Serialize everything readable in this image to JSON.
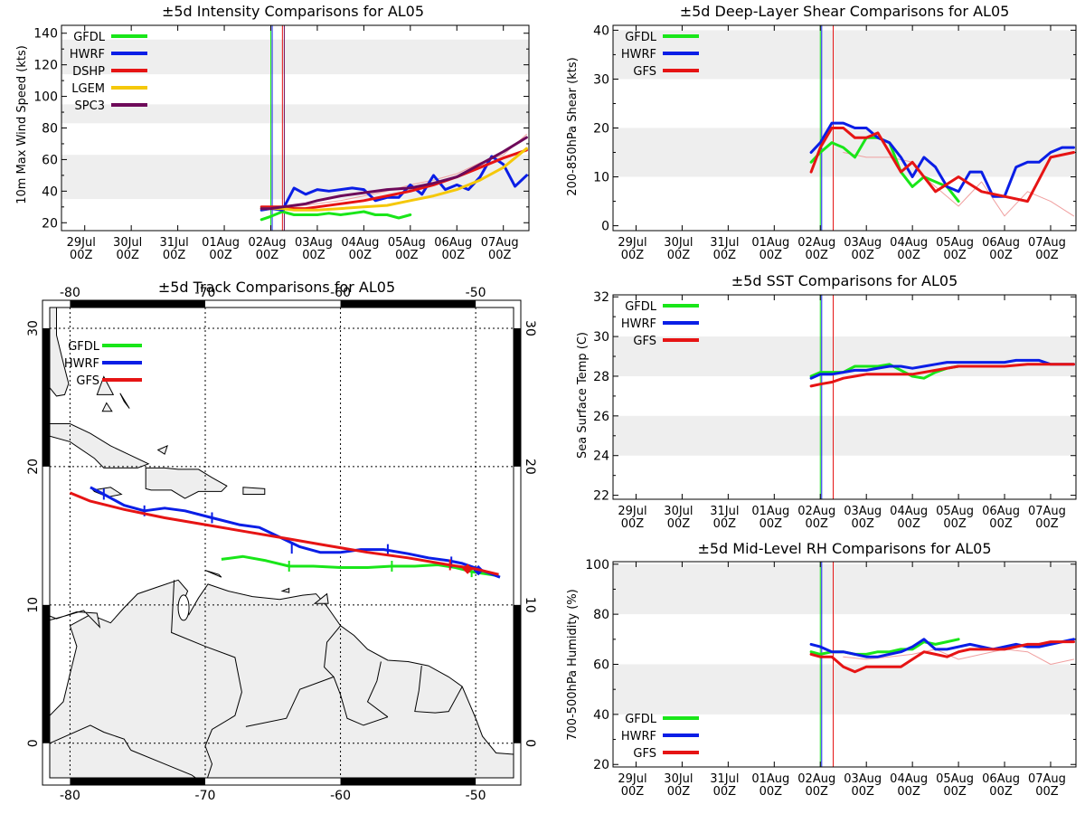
{
  "colors": {
    "GFDL": "#19e619",
    "HWRF": "#0a1ee6",
    "DSHP": "#e61414",
    "LGEM": "#f5c80a",
    "SPC3": "#6e0a5a",
    "GFS": "#e61414",
    "band": "#eeeeee",
    "land": "#eeeeee"
  },
  "time_ticks": [
    "29Jul|00Z",
    "30Jul|00Z",
    "31Jul|00Z",
    "01Aug|00Z",
    "02Aug|00Z",
    "03Aug|00Z",
    "04Aug|00Z",
    "05Aug|00Z",
    "06Aug|00Z",
    "07Aug|00Z"
  ],
  "chart_data": [
    {
      "id": "intensity",
      "type": "line",
      "title": "±5d Intensity Comparisons for AL05",
      "ylabel": "10m Max Wind Speed (kts)",
      "xlim": [
        -0.5,
        9.55
      ],
      "ylim": [
        15,
        145
      ],
      "yticks": [
        20,
        40,
        60,
        80,
        100,
        120,
        140
      ],
      "bands": [
        [
          35,
          63
        ],
        [
          83,
          95
        ],
        [
          114,
          136
        ]
      ],
      "vlines": [
        {
          "x": 4.0,
          "color": "#19e619"
        },
        {
          "x": 4.03,
          "color": "#0a1ee6"
        },
        {
          "x": 4.25,
          "color": "#e61414"
        },
        {
          "x": 4.29,
          "color": "#6e0a5a"
        }
      ],
      "legend": [
        "GFDL",
        "HWRF",
        "DSHP",
        "LGEM",
        "SPC3"
      ],
      "series": [
        {
          "name": "GFDL",
          "x": [
            3.8,
            4.0,
            4.25,
            4.5,
            4.75,
            5.0,
            5.25,
            5.5,
            5.75,
            6.0,
            6.25,
            6.5,
            6.75,
            7.0
          ],
          "y": [
            22,
            24,
            27,
            25,
            25,
            25,
            26,
            25,
            26,
            27,
            25,
            25,
            23,
            25
          ]
        },
        {
          "name": "HWRF",
          "x": [
            3.8,
            4.0,
            4.25,
            4.5,
            4.75,
            5.0,
            5.25,
            5.5,
            5.75,
            6.0,
            6.25,
            6.5,
            6.75,
            7.0,
            7.25,
            7.5,
            7.75,
            8.0,
            8.25,
            8.5,
            8.75,
            9.0,
            9.25,
            9.5
          ],
          "y": [
            28,
            29,
            28,
            42,
            38,
            41,
            40,
            41,
            42,
            41,
            34,
            36,
            36,
            44,
            38,
            50,
            41,
            44,
            41,
            49,
            62,
            57,
            43,
            50
          ]
        },
        {
          "name": "DSHP",
          "x": [
            3.8,
            4.0,
            4.25,
            4.5,
            4.75,
            5.0,
            5.5,
            6.0,
            6.5,
            7.0,
            7.5,
            8.0,
            8.5,
            9.0,
            9.5
          ],
          "y": [
            30,
            30,
            30,
            29,
            29,
            30,
            32,
            34,
            37,
            40,
            44,
            49,
            55,
            61,
            66
          ]
        },
        {
          "name": "LGEM",
          "x": [
            3.8,
            4.0,
            4.25,
            4.5,
            4.75,
            5.0,
            5.5,
            6.0,
            6.5,
            7.0,
            7.5,
            8.0,
            8.5,
            9.0,
            9.5
          ],
          "y": [
            29,
            29,
            29,
            28,
            28,
            28,
            29,
            30,
            31,
            34,
            37,
            41,
            47,
            55,
            67
          ]
        },
        {
          "name": "SPC3",
          "x": [
            3.8,
            4.0,
            4.25,
            4.5,
            4.75,
            5.0,
            5.5,
            6.0,
            6.5,
            7.0,
            7.5,
            8.0,
            8.5,
            9.0,
            9.5
          ],
          "y": [
            29,
            29,
            30,
            31,
            32,
            34,
            37,
            39,
            41,
            42,
            45,
            49,
            57,
            65,
            74
          ]
        },
        {
          "name": "DSHP-prior",
          "color": "#f0a0a0",
          "thin": true,
          "x": [
            4.25,
            4.5,
            5.0,
            5.5,
            6.0,
            6.5,
            7.0,
            7.5,
            8.0,
            8.5,
            9.0,
            9.5
          ],
          "y": [
            29,
            30,
            32,
            34,
            37,
            40,
            44,
            47,
            51,
            58,
            63,
            76
          ]
        }
      ]
    },
    {
      "id": "shear",
      "type": "line",
      "title": "±5d Deep-Layer Shear Comparisons for AL05",
      "ylabel": "200-850hPa Shear (kts)",
      "xlim": [
        -0.5,
        9.55
      ],
      "ylim": [
        -1,
        41
      ],
      "yticks": [
        0,
        10,
        20,
        30,
        40
      ],
      "bands": [
        [
          10,
          20
        ],
        [
          30,
          40
        ]
      ],
      "vlines": [
        {
          "x": 4.0,
          "color": "#19e619"
        },
        {
          "x": 4.03,
          "color": "#0a1ee6"
        },
        {
          "x": 4.28,
          "color": "#e61414"
        }
      ],
      "legend": [
        "GFDL",
        "HWRF",
        "GFS"
      ],
      "series": [
        {
          "name": "GFDL",
          "x": [
            3.8,
            4.0,
            4.25,
            4.5,
            4.75,
            5.0,
            5.25,
            5.5,
            5.75,
            6.0,
            6.25,
            6.5,
            6.75,
            7.0
          ],
          "y": [
            13,
            15,
            17,
            16,
            14,
            18,
            18,
            17,
            11,
            8,
            10,
            9,
            8,
            5
          ]
        },
        {
          "name": "HWRF",
          "x": [
            3.8,
            4.0,
            4.25,
            4.5,
            4.75,
            5.0,
            5.25,
            5.5,
            5.75,
            6.0,
            6.25,
            6.5,
            6.75,
            7.0,
            7.25,
            7.5,
            7.75,
            8.0,
            8.25,
            8.5,
            8.75,
            9.0,
            9.25,
            9.5
          ],
          "y": [
            15,
            17,
            21,
            21,
            20,
            20,
            18,
            17,
            14,
            10,
            14,
            12,
            8,
            7,
            11,
            11,
            6,
            6,
            12,
            13,
            13,
            15,
            16,
            16
          ]
        },
        {
          "name": "GFS",
          "x": [
            3.8,
            4.0,
            4.25,
            4.5,
            4.75,
            5.0,
            5.25,
            5.5,
            5.75,
            6.0,
            6.5,
            7.0,
            7.5,
            8.0,
            8.5,
            9.0,
            9.5
          ],
          "y": [
            11,
            16,
            20,
            20,
            18,
            18,
            19,
            15,
            11,
            13,
            7,
            10,
            7,
            6,
            5,
            14,
            15
          ]
        },
        {
          "name": "GFS-prior",
          "color": "#f0a0a0",
          "thin": true,
          "x": [
            4.5,
            5.0,
            5.5,
            6.0,
            6.25,
            6.5,
            6.75,
            7.0,
            7.5,
            8.0,
            8.5,
            9.0,
            9.5
          ],
          "y": [
            15,
            14,
            14,
            13,
            10,
            8,
            6,
            4,
            9,
            2,
            7,
            5,
            2
          ]
        }
      ]
    },
    {
      "id": "track",
      "type": "map",
      "title": "±5d Track Comparisons for AL05",
      "xlim": [
        -81.5,
        -47.2
      ],
      "ylim": [
        -2.5,
        31.5
      ],
      "lon_ticks": [
        -80,
        -70,
        -60,
        -50
      ],
      "lat_ticks": [
        0,
        10,
        20,
        30
      ],
      "legend": [
        "GFDL",
        "HWRF",
        "GFS"
      ],
      "series": [
        {
          "name": "GFDL",
          "lon": [
            -68.8,
            -67.2,
            -65.5,
            -63.8,
            -62,
            -60,
            -58,
            -56.2,
            -54.5,
            -52.8,
            -51.5,
            -50.3,
            -48.3
          ],
          "lat": [
            13.3,
            13.5,
            13.2,
            12.8,
            12.8,
            12.7,
            12.7,
            12.8,
            12.8,
            12.9,
            12.7,
            12.4,
            12.1
          ],
          "marks": [
            [
              -63.8,
              12.8
            ],
            [
              -56.2,
              12.8
            ],
            [
              -50.3,
              12.4
            ]
          ]
        },
        {
          "name": "HWRF",
          "lon": [
            -78.5,
            -77.5,
            -76,
            -74.5,
            -73,
            -71.5,
            -69.5,
            -67.5,
            -66,
            -64.5,
            -63,
            -61.5,
            -60,
            -58.5,
            -56.8,
            -55,
            -53.5,
            -52,
            -51,
            -49.8,
            -48.2
          ],
          "lat": [
            18.5,
            18,
            17.2,
            16.8,
            17,
            16.8,
            16.3,
            15.8,
            15.6,
            14.9,
            14.2,
            13.8,
            13.8,
            14.0,
            14.0,
            13.7,
            13.4,
            13.2,
            13.0,
            12.6,
            12.0
          ],
          "marks": [
            [
              -77.5,
              18.0
            ],
            [
              -74.5,
              16.8
            ],
            [
              -69.5,
              16.3
            ],
            [
              -63.6,
              14.1
            ],
            [
              -56.5,
              14.0
            ],
            [
              -51.8,
              13.1
            ]
          ],
          "diamond": [
            -49.8,
            12.5
          ]
        },
        {
          "name": "GFS",
          "lon": [
            -80,
            -78.5,
            -76,
            -73,
            -70,
            -67,
            -64,
            -61,
            -58,
            -55,
            -52,
            -50,
            -48.3
          ],
          "lat": [
            18.1,
            17.5,
            16.9,
            16.3,
            15.8,
            15.3,
            14.8,
            14.3,
            13.8,
            13.4,
            12.9,
            12.6,
            12.2
          ],
          "marks": [
            [
              -51.9,
              12.9
            ]
          ],
          "diamond": [
            -50.6,
            12.6
          ]
        }
      ]
    },
    {
      "id": "sst",
      "type": "line",
      "title": "±5d SST Comparisons for AL05",
      "ylabel": "Sea Surface Temp (C)",
      "xlim": [
        -0.5,
        9.55
      ],
      "ylim": [
        21.8,
        32.1
      ],
      "yticks": [
        22,
        24,
        26,
        28,
        30,
        32
      ],
      "bands": [
        [
          24,
          26
        ],
        [
          28,
          30
        ]
      ],
      "vlines": [
        {
          "x": 4.0,
          "color": "#19e619"
        },
        {
          "x": 4.03,
          "color": "#0a1ee6"
        },
        {
          "x": 4.28,
          "color": "#e61414"
        }
      ],
      "legend": [
        "GFDL",
        "HWRF",
        "GFS"
      ],
      "series": [
        {
          "name": "GFDL",
          "x": [
            3.8,
            4.0,
            4.25,
            4.5,
            4.75,
            5.0,
            5.25,
            5.5,
            5.75,
            6.0,
            6.25,
            6.5,
            6.75,
            7.0
          ],
          "y": [
            28.0,
            28.2,
            28.2,
            28.2,
            28.5,
            28.5,
            28.5,
            28.6,
            28.3,
            28.0,
            27.9,
            28.2,
            28.4,
            28.5
          ]
        },
        {
          "name": "HWRF",
          "x": [
            3.8,
            4.0,
            4.25,
            4.5,
            4.75,
            5.0,
            5.25,
            5.5,
            5.75,
            6.0,
            6.25,
            6.5,
            6.75,
            7.0,
            7.5,
            8.0,
            8.25,
            8.5,
            8.75,
            9.0,
            9.5
          ],
          "y": [
            27.9,
            28.1,
            28.1,
            28.2,
            28.3,
            28.3,
            28.4,
            28.5,
            28.5,
            28.4,
            28.5,
            28.6,
            28.7,
            28.7,
            28.7,
            28.7,
            28.8,
            28.8,
            28.8,
            28.6,
            28.6
          ]
        },
        {
          "name": "GFS",
          "x": [
            3.8,
            4.0,
            4.25,
            4.5,
            4.75,
            5.0,
            5.5,
            6.0,
            6.5,
            7.0,
            7.5,
            8.0,
            8.5,
            9.0,
            9.5
          ],
          "y": [
            27.5,
            27.6,
            27.7,
            27.9,
            28.0,
            28.1,
            28.1,
            28.1,
            28.3,
            28.5,
            28.5,
            28.5,
            28.6,
            28.6,
            28.6
          ]
        }
      ]
    },
    {
      "id": "rh",
      "type": "line",
      "title": "±5d Mid-Level RH Comparisons for AL05",
      "ylabel": "700-500hPa Humidity (%)",
      "xlim": [
        -0.5,
        9.55
      ],
      "ylim": [
        19,
        101
      ],
      "yticks": [
        20,
        40,
        60,
        80,
        100
      ],
      "bands": [
        [
          40,
          60
        ],
        [
          80,
          100
        ]
      ],
      "vlines": [
        {
          "x": 4.0,
          "color": "#19e619"
        },
        {
          "x": 4.03,
          "color": "#0a1ee6"
        },
        {
          "x": 4.28,
          "color": "#e61414"
        }
      ],
      "legend": [
        "GFDL",
        "HWRF",
        "GFS"
      ],
      "legend_pos": "bottom-left",
      "series": [
        {
          "name": "GFDL",
          "x": [
            3.8,
            4.0,
            4.25,
            4.5,
            4.75,
            5.0,
            5.25,
            5.5,
            5.75,
            6.0,
            6.25,
            6.5,
            6.75,
            7.0
          ],
          "y": [
            65,
            64,
            65,
            65,
            64,
            64,
            65,
            65,
            66,
            66,
            69,
            68,
            69,
            70
          ]
        },
        {
          "name": "HWRF",
          "x": [
            3.8,
            4.0,
            4.25,
            4.5,
            4.75,
            5.0,
            5.25,
            5.5,
            5.75,
            6.0,
            6.25,
            6.5,
            6.75,
            7.0,
            7.25,
            7.5,
            7.75,
            8.0,
            8.25,
            8.5,
            8.75,
            9.0,
            9.25,
            9.5
          ],
          "y": [
            68,
            67,
            65,
            65,
            64,
            63,
            63,
            64,
            65,
            67,
            70,
            66,
            66,
            67,
            68,
            67,
            66,
            67,
            68,
            67,
            67,
            68,
            69,
            70
          ]
        },
        {
          "name": "GFS",
          "x": [
            3.8,
            4.0,
            4.25,
            4.5,
            4.75,
            5.0,
            5.25,
            5.5,
            5.75,
            6.0,
            6.25,
            6.5,
            6.75,
            7.0,
            7.25,
            7.5,
            7.75,
            8.0,
            8.25,
            8.5,
            8.75,
            9.0,
            9.25,
            9.5
          ],
          "y": [
            64,
            63,
            63,
            59,
            57,
            59,
            59,
            59,
            59,
            62,
            65,
            64,
            63,
            65,
            66,
            66,
            66,
            66,
            67,
            68,
            68,
            69,
            69,
            69
          ]
        },
        {
          "name": "GFS-prior",
          "color": "#f0a0a0",
          "thin": true,
          "x": [
            4.5,
            5.0,
            5.5,
            6.0,
            6.5,
            7.0,
            7.5,
            8.0,
            8.5,
            9.0,
            9.5
          ],
          "y": [
            63,
            62,
            63,
            64,
            66,
            62,
            64,
            66,
            65,
            60,
            62
          ]
        }
      ]
    }
  ]
}
